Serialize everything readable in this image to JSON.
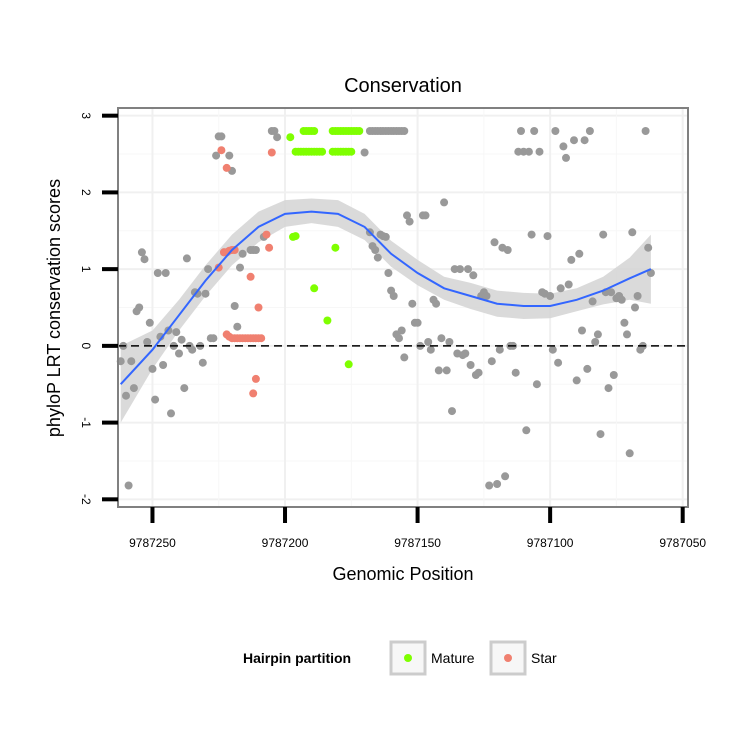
{
  "chart_data": {
    "type": "scatter",
    "title": "Conservation",
    "xlabel": "Genomic Position",
    "ylabel": "phyloP LRT conservation scores",
    "x_reversed": true,
    "xlim": [
      9787263,
      9787048
    ],
    "ylim": [
      -2.1,
      3.1
    ],
    "x_ticks": [
      9787250,
      9787200,
      9787150,
      9787100,
      9787050
    ],
    "x_tick_labels": [
      "9787250",
      "9787200",
      "9787150",
      "9787100",
      "9787050"
    ],
    "y_ticks": [
      -2,
      -1,
      0,
      1,
      2,
      3
    ],
    "y_tick_labels": [
      "-2",
      "-1",
      "0",
      "1",
      "2",
      "3"
    ],
    "grid": true,
    "reference_line": {
      "y": 0,
      "style": "dashed"
    },
    "legend": {
      "title": "Hairpin partition",
      "placement": "bottom",
      "entries": [
        {
          "label": "Mature",
          "color": "#7FFF00"
        },
        {
          "label": "Star",
          "color": "#F08070"
        }
      ]
    },
    "colors": {
      "other": "#999999",
      "smooth": "#3366FF",
      "band": "#d4d4d4"
    },
    "series": [
      {
        "name": "Mature",
        "color": "#7FFF00",
        "points": [
          [
            9787198,
            2.72
          ],
          [
            9787197,
            1.42
          ],
          [
            9787196,
            1.43
          ],
          [
            9787193,
            2.8
          ],
          [
            9787192,
            2.8
          ],
          [
            9787191,
            2.8
          ],
          [
            9787190,
            2.8
          ],
          [
            9787189,
            2.8
          ],
          [
            9787196,
            2.53
          ],
          [
            9787195,
            2.53
          ],
          [
            9787194,
            2.53
          ],
          [
            9787193,
            2.53
          ],
          [
            9787192,
            2.53
          ],
          [
            9787191,
            2.53
          ],
          [
            9787190,
            2.53
          ],
          [
            9787189,
            2.53
          ],
          [
            9787188,
            2.53
          ],
          [
            9787187,
            2.53
          ],
          [
            9787186,
            2.53
          ],
          [
            9787189,
            0.75
          ],
          [
            9787184,
            0.33
          ],
          [
            9787182,
            2.8
          ],
          [
            9787181,
            2.8
          ],
          [
            9787180,
            2.8
          ],
          [
            9787179,
            2.8
          ],
          [
            9787178,
            2.8
          ],
          [
            9787177,
            2.8
          ],
          [
            9787176,
            2.8
          ],
          [
            9787175,
            2.8
          ],
          [
            9787174,
            2.8
          ],
          [
            9787173,
            2.8
          ],
          [
            9787172,
            2.8
          ],
          [
            9787182,
            2.53
          ],
          [
            9787181,
            2.53
          ],
          [
            9787180,
            2.53
          ],
          [
            9787179,
            2.53
          ],
          [
            9787178,
            2.53
          ],
          [
            9787177,
            2.53
          ],
          [
            9787176,
            2.53
          ],
          [
            9787175,
            2.53
          ],
          [
            9787181,
            1.28
          ],
          [
            9787176,
            -0.24
          ]
        ]
      },
      {
        "name": "Star",
        "color": "#F08070",
        "points": [
          [
            9787224,
            2.55
          ],
          [
            9787222,
            2.32
          ],
          [
            9787223,
            1.22
          ],
          [
            9787222,
            1.22
          ],
          [
            9787221,
            1.24
          ],
          [
            9787220,
            1.25
          ],
          [
            9787219,
            1.25
          ],
          [
            9787225,
            1.02
          ],
          [
            9787222,
            0.15
          ],
          [
            9787221,
            0.12
          ],
          [
            9787220,
            0.1
          ],
          [
            9787219,
            0.1
          ],
          [
            9787218,
            0.1
          ],
          [
            9787217,
            0.1
          ],
          [
            9787216,
            0.1
          ],
          [
            9787215,
            0.1
          ],
          [
            9787214,
            0.1
          ],
          [
            9787213,
            0.1
          ],
          [
            9787212,
            0.1
          ],
          [
            9787211,
            0.1
          ],
          [
            9787210,
            0.1
          ],
          [
            9787209,
            0.1
          ],
          [
            9787213,
            0.9
          ],
          [
            9787210,
            0.5
          ],
          [
            9787211,
            -0.43
          ],
          [
            9787212,
            -0.62
          ],
          [
            9787207,
            1.45
          ],
          [
            9787206,
            1.28
          ],
          [
            9787205,
            2.52
          ]
        ]
      },
      {
        "name": "",
        "color": "#999999",
        "points": [
          [
            9787262,
            -0.2
          ],
          [
            9787261,
            0.0
          ],
          [
            9787260,
            -0.65
          ],
          [
            9787259,
            -1.82
          ],
          [
            9787258,
            -0.2
          ],
          [
            9787257,
            -0.55
          ],
          [
            9787256,
            0.45
          ],
          [
            9787255,
            0.5
          ],
          [
            9787254,
            1.22
          ],
          [
            9787253,
            1.13
          ],
          [
            9787252,
            0.05
          ],
          [
            9787251,
            0.3
          ],
          [
            9787250,
            -0.3
          ],
          [
            9787249,
            -0.7
          ],
          [
            9787248,
            0.95
          ],
          [
            9787247,
            0.12
          ],
          [
            9787246,
            -0.25
          ],
          [
            9787245,
            0.95
          ],
          [
            9787244,
            0.2
          ],
          [
            9787243,
            -0.88
          ],
          [
            9787242,
            0.0
          ],
          [
            9787241,
            0.18
          ],
          [
            9787240,
            -0.1
          ],
          [
            9787239,
            0.08
          ],
          [
            9787238,
            -0.55
          ],
          [
            9787237,
            1.14
          ],
          [
            9787236,
            0.0
          ],
          [
            9787235,
            -0.05
          ],
          [
            9787234,
            0.7
          ],
          [
            9787233,
            0.68
          ],
          [
            9787232,
            0.0
          ],
          [
            9787231,
            -0.22
          ],
          [
            9787230,
            0.68
          ],
          [
            9787229,
            1.0
          ],
          [
            9787228,
            0.1
          ],
          [
            9787227,
            0.1
          ],
          [
            9787226,
            2.48
          ],
          [
            9787225,
            2.73
          ],
          [
            9787224,
            2.73
          ],
          [
            9787223,
            1.22
          ],
          [
            9787222,
            1.22
          ],
          [
            9787221,
            2.48
          ],
          [
            9787220,
            2.28
          ],
          [
            9787219,
            0.52
          ],
          [
            9787218,
            0.25
          ],
          [
            9787217,
            1.02
          ],
          [
            9787216,
            1.2
          ],
          [
            9787213,
            1.25
          ],
          [
            9787212,
            1.25
          ],
          [
            9787211,
            1.25
          ],
          [
            9787208,
            1.42
          ],
          [
            9787205,
            2.8
          ],
          [
            9787204,
            2.8
          ],
          [
            9787203,
            2.72
          ],
          [
            9787168,
            2.8
          ],
          [
            9787167,
            2.8
          ],
          [
            9787166,
            2.8
          ],
          [
            9787165,
            2.8
          ],
          [
            9787164,
            2.8
          ],
          [
            9787163,
            2.8
          ],
          [
            9787162,
            2.8
          ],
          [
            9787161,
            2.8
          ],
          [
            9787160,
            2.8
          ],
          [
            9787170,
            2.52
          ],
          [
            9787159,
            2.8
          ],
          [
            9787158,
            2.8
          ],
          [
            9787157,
            2.8
          ],
          [
            9787156,
            2.8
          ],
          [
            9787155,
            2.8
          ],
          [
            9787168,
            1.48
          ],
          [
            9787167,
            1.3
          ],
          [
            9787166,
            1.25
          ],
          [
            9787165,
            1.15
          ],
          [
            9787164,
            1.45
          ],
          [
            9787163,
            1.43
          ],
          [
            9787162,
            1.42
          ],
          [
            9787161,
            0.95
          ],
          [
            9787160,
            0.72
          ],
          [
            9787159,
            0.65
          ],
          [
            9787158,
            0.15
          ],
          [
            9787157,
            0.1
          ],
          [
            9787156,
            0.2
          ],
          [
            9787155,
            -0.15
          ],
          [
            9787154,
            1.7
          ],
          [
            9787153,
            1.62
          ],
          [
            9787152,
            0.55
          ],
          [
            9787151,
            0.3
          ],
          [
            9787150,
            0.3
          ],
          [
            9787149,
            0.0
          ],
          [
            9787148,
            1.7
          ],
          [
            9787147,
            1.7
          ],
          [
            9787146,
            0.05
          ],
          [
            9787145,
            -0.05
          ],
          [
            9787144,
            0.6
          ],
          [
            9787143,
            0.55
          ],
          [
            9787142,
            -0.32
          ],
          [
            9787141,
            0.1
          ],
          [
            9787140,
            1.87
          ],
          [
            9787139,
            -0.32
          ],
          [
            9787138,
            0.05
          ],
          [
            9787137,
            -0.85
          ],
          [
            9787136,
            1.0
          ],
          [
            9787135,
            -0.1
          ],
          [
            9787134,
            1.0
          ],
          [
            9787133,
            -0.12
          ],
          [
            9787132,
            -0.1
          ],
          [
            9787131,
            1.0
          ],
          [
            9787130,
            -0.25
          ],
          [
            9787129,
            0.92
          ],
          [
            9787128,
            -0.38
          ],
          [
            9787127,
            -0.35
          ],
          [
            9787126,
            0.65
          ],
          [
            9787125,
            0.7
          ],
          [
            9787124,
            0.65
          ],
          [
            9787123,
            -1.82
          ],
          [
            9787122,
            -0.2
          ],
          [
            9787121,
            1.35
          ],
          [
            9787120,
            -1.8
          ],
          [
            9787119,
            -0.05
          ],
          [
            9787118,
            1.28
          ],
          [
            9787117,
            -1.7
          ],
          [
            9787116,
            1.25
          ],
          [
            9787115,
            0.0
          ],
          [
            9787114,
            0.0
          ],
          [
            9787113,
            -0.35
          ],
          [
            9787112,
            2.53
          ],
          [
            9787111,
            2.8
          ],
          [
            9787110,
            2.53
          ],
          [
            9787109,
            -1.1
          ],
          [
            9787108,
            2.53
          ],
          [
            9787107,
            1.45
          ],
          [
            9787106,
            2.8
          ],
          [
            9787105,
            -0.5
          ],
          [
            9787104,
            2.53
          ],
          [
            9787103,
            0.7
          ],
          [
            9787102,
            0.68
          ],
          [
            9787101,
            1.43
          ],
          [
            9787100,
            0.65
          ],
          [
            9787099,
            -0.05
          ],
          [
            9787098,
            2.8
          ],
          [
            9787097,
            -0.22
          ],
          [
            9787096,
            0.75
          ],
          [
            9787095,
            2.6
          ],
          [
            9787094,
            2.45
          ],
          [
            9787093,
            0.8
          ],
          [
            9787092,
            1.12
          ],
          [
            9787091,
            2.68
          ],
          [
            9787090,
            -0.45
          ],
          [
            9787089,
            1.2
          ],
          [
            9787088,
            0.2
          ],
          [
            9787087,
            2.68
          ],
          [
            9787086,
            -0.3
          ],
          [
            9787085,
            2.8
          ],
          [
            9787084,
            0.58
          ],
          [
            9787083,
            0.05
          ],
          [
            9787082,
            0.15
          ],
          [
            9787081,
            -1.15
          ],
          [
            9787080,
            1.45
          ],
          [
            9787079,
            0.7
          ],
          [
            9787078,
            -0.55
          ],
          [
            9787077,
            0.7
          ],
          [
            9787076,
            -0.38
          ],
          [
            9787075,
            0.62
          ],
          [
            9787074,
            0.65
          ],
          [
            9787073,
            0.6
          ],
          [
            9787072,
            0.3
          ],
          [
            9787071,
            0.15
          ],
          [
            9787070,
            -1.4
          ],
          [
            9787069,
            1.48
          ],
          [
            9787068,
            0.5
          ],
          [
            9787067,
            0.65
          ],
          [
            9787066,
            -0.05
          ],
          [
            9787065,
            0.0
          ],
          [
            9787064,
            2.8
          ],
          [
            9787063,
            1.28
          ],
          [
            9787062,
            0.95
          ]
        ]
      }
    ],
    "smooth": {
      "name": "",
      "color": "#3366FF",
      "x": [
        9787262,
        9787250,
        9787240,
        9787230,
        9787220,
        9787210,
        9787200,
        9787190,
        9787180,
        9787170,
        9787160,
        9787150,
        9787140,
        9787130,
        9787120,
        9787110,
        9787100,
        9787090,
        9787080,
        9787070,
        9787062
      ],
      "y": [
        -0.5,
        -0.05,
        0.4,
        0.85,
        1.25,
        1.55,
        1.72,
        1.75,
        1.72,
        1.55,
        1.2,
        0.95,
        0.75,
        0.65,
        0.55,
        0.52,
        0.52,
        0.6,
        0.72,
        0.88,
        1.0
      ],
      "lower": [
        -1.0,
        -0.3,
        0.2,
        0.65,
        1.05,
        1.35,
        1.55,
        1.6,
        1.55,
        1.38,
        1.03,
        0.79,
        0.6,
        0.48,
        0.38,
        0.35,
        0.36,
        0.45,
        0.54,
        0.6,
        0.55
      ],
      "upper": [
        0.0,
        0.2,
        0.6,
        1.05,
        1.45,
        1.75,
        1.9,
        1.92,
        1.9,
        1.72,
        1.37,
        1.12,
        0.9,
        0.82,
        0.72,
        0.69,
        0.68,
        0.75,
        0.9,
        1.15,
        1.45
      ]
    }
  }
}
